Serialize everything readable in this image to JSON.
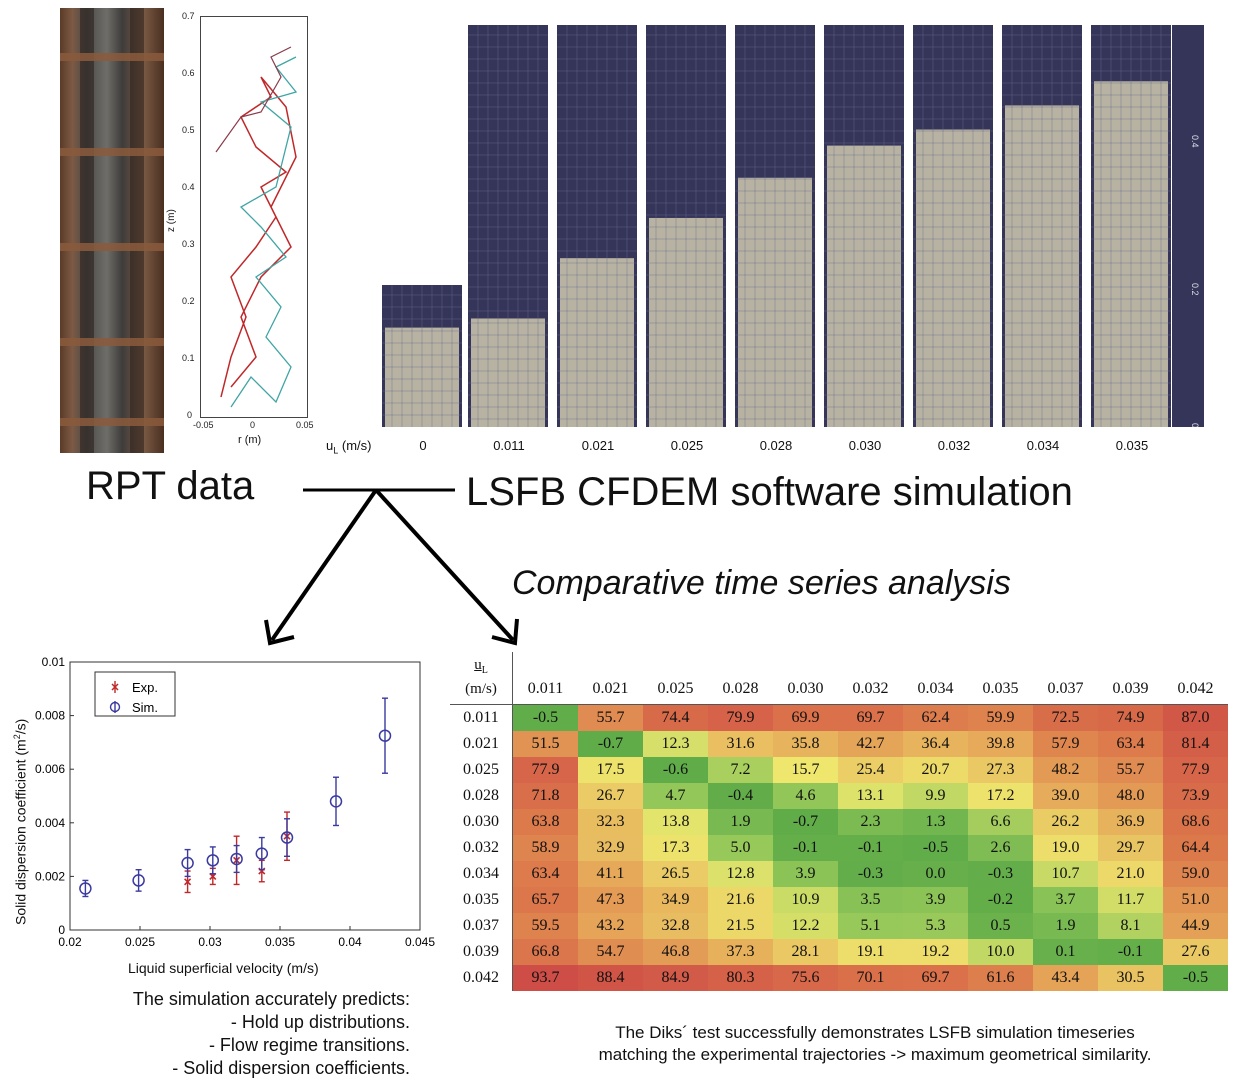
{
  "trajectory_plot": {
    "xlabel": "r (m)",
    "ylabel": "z (m)",
    "xticks": [
      "-0.05",
      "0",
      "0.05"
    ],
    "yticks": [
      "0",
      "0.1",
      "0.2",
      "0.3",
      "0.4",
      "0.5",
      "0.6",
      "0.7"
    ]
  },
  "simulation": {
    "velocity_label": "u",
    "velocity_sub": "L",
    "velocity_unit": " (m/s)",
    "columns": [
      "0",
      "0.011",
      "0.021",
      "0.025",
      "0.028",
      "0.030",
      "0.032",
      "0.034",
      "0.035"
    ],
    "bed_fraction": [
      0.7,
      0.27,
      0.42,
      0.52,
      0.62,
      0.7,
      0.74,
      0.8,
      0.86
    ],
    "scale_ticks": [
      "0",
      "0.2",
      "0.4"
    ],
    "colors": {
      "background": "#35355a",
      "particles": "#d8d2b4"
    }
  },
  "labels": {
    "rpt": "RPT data",
    "lsfb": "LSFB CFDEM software simulation",
    "comparative": "Comparative time series analysis"
  },
  "chart_data": {
    "type": "scatter",
    "xlabel": "Liquid superficial velocity (m/s)",
    "ylabel": "Solid dispersion coefficient (m²/s)",
    "xlim": [
      0.02,
      0.045
    ],
    "ylim": [
      0,
      0.01
    ],
    "xticks": [
      "0.02",
      "0.025",
      "0.03",
      "0.035",
      "0.04",
      "0.045"
    ],
    "yticks": [
      "0",
      "0.002",
      "0.004",
      "0.006",
      "0.008",
      "0.01"
    ],
    "legend_position": "top-left",
    "series": [
      {
        "name": "Exp.",
        "marker": "x",
        "color": "#c0282a",
        "points": [
          {
            "x": 0.0284,
            "y": 0.0018,
            "err": 0.0004
          },
          {
            "x": 0.0302,
            "y": 0.002,
            "err": 0.0003
          },
          {
            "x": 0.0319,
            "y": 0.0026,
            "err": 0.0009
          },
          {
            "x": 0.0337,
            "y": 0.0022,
            "err": 0.0004
          },
          {
            "x": 0.0355,
            "y": 0.0035,
            "err": 0.0009
          }
        ]
      },
      {
        "name": "Sim.",
        "marker": "o",
        "color": "#3a3aa0",
        "points": [
          {
            "x": 0.0211,
            "y": 0.00155,
            "err": 0.0003
          },
          {
            "x": 0.0249,
            "y": 0.00185,
            "err": 0.0004
          },
          {
            "x": 0.0284,
            "y": 0.0025,
            "err": 0.0005
          },
          {
            "x": 0.0302,
            "y": 0.0026,
            "err": 0.0005
          },
          {
            "x": 0.0319,
            "y": 0.00265,
            "err": 0.0005
          },
          {
            "x": 0.0337,
            "y": 0.00285,
            "err": 0.0006
          },
          {
            "x": 0.0355,
            "y": 0.00345,
            "err": 0.0007
          },
          {
            "x": 0.039,
            "y": 0.0048,
            "err": 0.0009
          },
          {
            "x": 0.0425,
            "y": 0.00725,
            "err": 0.0014
          }
        ]
      }
    ]
  },
  "sim_caption": [
    "The simulation accurately predicts:",
    "- Hold up distributions.",
    "- Flow regime transitions.",
    "- Solid dispersion coefficients."
  ],
  "diks": {
    "corner_top": "u",
    "corner_sub": "L",
    "corner_unit": "(m/s)",
    "columns": [
      "0.011",
      "0.021",
      "0.025",
      "0.028",
      "0.030",
      "0.032",
      "0.034",
      "0.035",
      "0.037",
      "0.039",
      "0.042"
    ],
    "rows": [
      {
        "label": "0.011",
        "values": [
          "-0.5",
          "55.7",
          "74.4",
          "79.9",
          "69.9",
          "69.7",
          "62.4",
          "59.9",
          "72.5",
          "74.9",
          "87.0"
        ]
      },
      {
        "label": "0.021",
        "values": [
          "51.5",
          "-0.7",
          "12.3",
          "31.6",
          "35.8",
          "42.7",
          "36.4",
          "39.8",
          "57.9",
          "63.4",
          "81.4"
        ]
      },
      {
        "label": "0.025",
        "values": [
          "77.9",
          "17.5",
          "-0.6",
          "7.2",
          "15.7",
          "25.4",
          "20.7",
          "27.3",
          "48.2",
          "55.7",
          "77.9"
        ]
      },
      {
        "label": "0.028",
        "values": [
          "71.8",
          "26.7",
          "4.7",
          "-0.4",
          "4.6",
          "13.1",
          "9.9",
          "17.2",
          "39.0",
          "48.0",
          "73.9"
        ]
      },
      {
        "label": "0.030",
        "values": [
          "63.8",
          "32.3",
          "13.8",
          "1.9",
          "-0.7",
          "2.3",
          "1.3",
          "6.6",
          "26.2",
          "36.9",
          "68.6"
        ]
      },
      {
        "label": "0.032",
        "values": [
          "58.9",
          "32.9",
          "17.3",
          "5.0",
          "-0.1",
          "-0.1",
          "-0.5",
          "2.6",
          "19.0",
          "29.7",
          "64.4"
        ]
      },
      {
        "label": "0.034",
        "values": [
          "63.4",
          "41.1",
          "26.5",
          "12.8",
          "3.9",
          "-0.3",
          "0.0",
          "-0.3",
          "10.7",
          "21.0",
          "59.0"
        ]
      },
      {
        "label": "0.035",
        "values": [
          "65.7",
          "47.3",
          "34.9",
          "21.6",
          "10.9",
          "3.5",
          "3.9",
          "-0.2",
          "3.7",
          "11.7",
          "51.0"
        ]
      },
      {
        "label": "0.037",
        "values": [
          "59.5",
          "43.2",
          "32.8",
          "21.5",
          "12.2",
          "5.1",
          "5.3",
          "0.5",
          "1.9",
          "8.1",
          "44.9"
        ]
      },
      {
        "label": "0.039",
        "values": [
          "66.8",
          "54.7",
          "46.8",
          "37.3",
          "28.1",
          "19.1",
          "19.2",
          "10.0",
          "0.1",
          "-0.1",
          "27.6"
        ]
      },
      {
        "label": "0.042",
        "values": [
          "93.7",
          "88.4",
          "84.9",
          "80.3",
          "75.6",
          "70.1",
          "69.7",
          "61.6",
          "43.4",
          "30.5",
          "-0.5"
        ]
      }
    ]
  },
  "diks_caption": [
    "The Diks´ test successfully demonstrates LSFB simulation timeseries",
    "matching the experimental trajectories -> maximum geometrical similarity."
  ]
}
